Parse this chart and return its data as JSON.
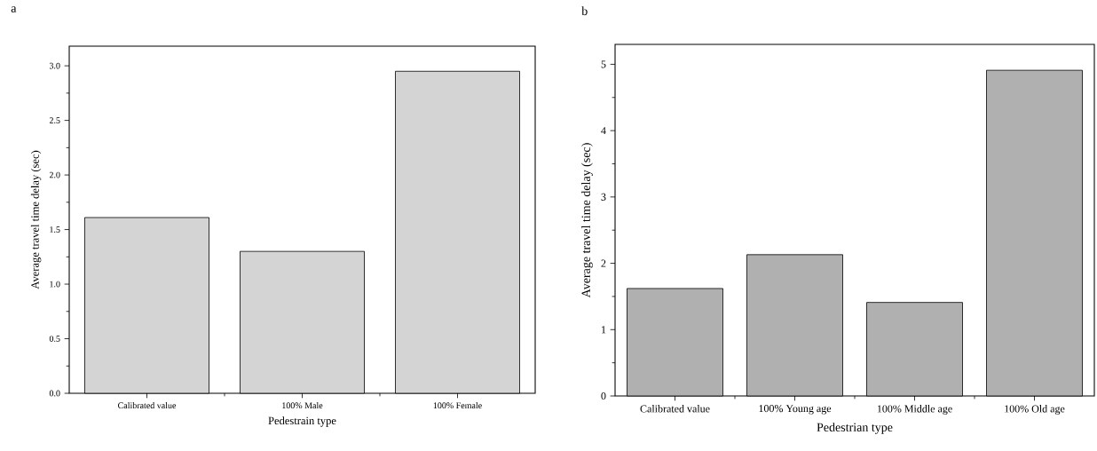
{
  "chart_data": [
    {
      "type": "bar",
      "title": "a",
      "xlabel": "Pedestrain type",
      "ylabel": "Average travel time delay (sec)",
      "categories": [
        "Calibrated value",
        "100% Male",
        "100% Female"
      ],
      "values": [
        1.61,
        1.3,
        2.95
      ],
      "color": "#d4d4d4",
      "ylim": [
        0,
        3.18
      ],
      "yticks": [
        {
          "value": 0,
          "label": "0.0"
        },
        {
          "value": 0.5,
          "label": "0.5"
        },
        {
          "value": 1,
          "label": "1.0"
        },
        {
          "value": 1.5,
          "label": "1.5"
        },
        {
          "value": 2,
          "label": "2.0"
        },
        {
          "value": 2.5,
          "label": "2.5"
        },
        {
          "value": 3,
          "label": "3.0"
        }
      ]
    },
    {
      "type": "bar",
      "title": "b",
      "xlabel": "Pedestrian type",
      "ylabel": "Average travel time delay (sec)",
      "categories": [
        "Calibrated value",
        "100% Young age",
        "100% Middle age",
        "100% Old age"
      ],
      "values": [
        1.62,
        2.13,
        1.41,
        4.91
      ],
      "color": "#b0b0b0",
      "ylim": [
        0,
        5.3
      ],
      "yticks": [
        0,
        1,
        2,
        3,
        4,
        5
      ]
    }
  ]
}
